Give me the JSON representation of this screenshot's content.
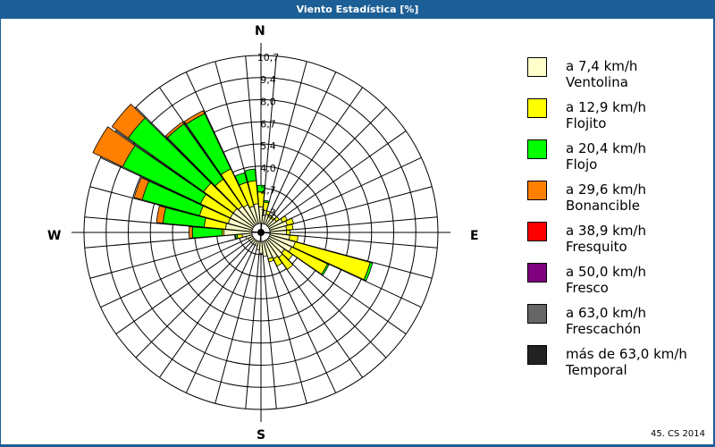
{
  "window": {
    "title": "Viento Estadística [%]"
  },
  "footer": {
    "text": "45. CS 2014"
  },
  "directions": {
    "n": "N",
    "e": "E",
    "s": "S",
    "w": "W"
  },
  "legend": [
    {
      "range": "a 7,4 km/h",
      "name": "Ventolina",
      "color": "#ffffcc"
    },
    {
      "range": "a 12,9 km/h",
      "name": "Flojito",
      "color": "#ffff00"
    },
    {
      "range": "a 20,4 km/h",
      "name": "Flojo",
      "color": "#00ff00"
    },
    {
      "range": "a 29,6 km/h",
      "name": "Bonancible",
      "color": "#ff8000"
    },
    {
      "range": "a 38,9 km/h",
      "name": "Fresquito",
      "color": "#ff0000"
    },
    {
      "range": "a 50,0 km/h",
      "name": "Fresco",
      "color": "#800080"
    },
    {
      "range": "a 63,0 km/h",
      "name": "Frescachón",
      "color": "#666666"
    },
    {
      "range": "más de 63,0 km/h",
      "name": "Temporal",
      "color": "#222222"
    }
  ],
  "chart_data": {
    "type": "wind_rose",
    "title": "Viento Estadística [%]",
    "unit": "%",
    "sector_width_deg": 10,
    "radial_ticks": [
      "1,3",
      "2,7",
      "4,0",
      "5,4",
      "6,7",
      "8,0",
      "9,4",
      "10,7"
    ],
    "radial_max": 10.7,
    "calm_radius_pct": 0.55,
    "series": [
      "Ventolina",
      "Flojito",
      "Flojo",
      "Bonancible",
      "Fresquito",
      "Fresco",
      "Frescachón",
      "Temporal"
    ],
    "sectors": [
      {
        "bearing": 0,
        "values": [
          1.0,
          0.9,
          0.4,
          0,
          0,
          0,
          0,
          0
        ]
      },
      {
        "bearing": 10,
        "values": [
          0.8,
          0.5,
          0.1,
          0,
          0,
          0,
          0,
          0
        ]
      },
      {
        "bearing": 20,
        "values": [
          0.6,
          0.2,
          0,
          0,
          0,
          0,
          0,
          0
        ]
      },
      {
        "bearing": 30,
        "values": [
          0.5,
          0.1,
          0,
          0,
          0,
          0,
          0,
          0
        ]
      },
      {
        "bearing": 40,
        "values": [
          0.5,
          0.1,
          0,
          0,
          0,
          0,
          0,
          0
        ]
      },
      {
        "bearing": 50,
        "values": [
          0.6,
          0.2,
          0,
          0,
          0,
          0,
          0,
          0
        ]
      },
      {
        "bearing": 60,
        "values": [
          0.9,
          0.3,
          0,
          0,
          0,
          0,
          0,
          0
        ]
      },
      {
        "bearing": 70,
        "values": [
          1.1,
          0.4,
          0,
          0,
          0,
          0,
          0,
          0
        ]
      },
      {
        "bearing": 80,
        "values": [
          1.0,
          0.4,
          0,
          0,
          0,
          0,
          0,
          0
        ]
      },
      {
        "bearing": 90,
        "values": [
          1.0,
          0.2,
          0,
          0,
          0,
          0,
          0,
          0
        ]
      },
      {
        "bearing": 100,
        "values": [
          1.2,
          0.5,
          0,
          0,
          0,
          0,
          0,
          0
        ]
      },
      {
        "bearing": 110,
        "values": [
          1.6,
          4.7,
          0.15,
          0,
          0,
          0,
          0,
          0
        ]
      },
      {
        "bearing": 120,
        "values": [
          1.5,
          2.4,
          0.1,
          0,
          0,
          0,
          0,
          0
        ]
      },
      {
        "bearing": 130,
        "values": [
          1.2,
          0.6,
          0,
          0,
          0,
          0,
          0,
          0
        ]
      },
      {
        "bearing": 140,
        "values": [
          1.3,
          0.9,
          0,
          0,
          0,
          0,
          0,
          0
        ]
      },
      {
        "bearing": 150,
        "values": [
          1.2,
          0.5,
          0,
          0,
          0,
          0,
          0,
          0
        ]
      },
      {
        "bearing": 160,
        "values": [
          1.1,
          0.2,
          0,
          0,
          0,
          0,
          0,
          0
        ]
      },
      {
        "bearing": 170,
        "values": [
          0.9,
          0,
          0,
          0,
          0,
          0,
          0,
          0
        ]
      },
      {
        "bearing": 180,
        "values": [
          0.7,
          0,
          0,
          0,
          0,
          0,
          0,
          0
        ]
      },
      {
        "bearing": 190,
        "values": [
          0.5,
          0,
          0,
          0,
          0,
          0,
          0,
          0
        ]
      },
      {
        "bearing": 200,
        "values": [
          0.3,
          0,
          0,
          0,
          0,
          0,
          0,
          0
        ]
      },
      {
        "bearing": 210,
        "values": [
          0.3,
          0,
          0,
          0,
          0,
          0,
          0,
          0
        ]
      },
      {
        "bearing": 220,
        "values": [
          0.3,
          0,
          0,
          0,
          0,
          0,
          0,
          0
        ]
      },
      {
        "bearing": 230,
        "values": [
          0.3,
          0,
          0,
          0,
          0,
          0,
          0,
          0
        ]
      },
      {
        "bearing": 240,
        "values": [
          0.3,
          0,
          0,
          0,
          0,
          0,
          0,
          0
        ]
      },
      {
        "bearing": 250,
        "values": [
          0.4,
          0,
          0,
          0,
          0,
          0,
          0,
          0
        ]
      },
      {
        "bearing": 260,
        "values": [
          0.6,
          0.3,
          0.1,
          0.05,
          0,
          0,
          0,
          0
        ]
      },
      {
        "bearing": 270,
        "values": [
          1.7,
          0.1,
          1.8,
          0.2,
          0,
          0,
          0,
          0
        ]
      },
      {
        "bearing": 280,
        "values": [
          1.6,
          1.3,
          2.5,
          0.4,
          0,
          0,
          0,
          0
        ]
      },
      {
        "bearing": 290,
        "values": [
          1.5,
          1.8,
          3.6,
          0.5,
          0,
          0,
          0,
          0
        ]
      },
      {
        "bearing": 300,
        "values": [
          1.5,
          2.0,
          5.2,
          2.0,
          0,
          0,
          0,
          0
        ]
      },
      {
        "bearing": 310,
        "values": [
          1.5,
          2.2,
          5.6,
          1.2,
          0,
          0,
          0,
          0
        ]
      },
      {
        "bearing": 320,
        "values": [
          1.4,
          2.0,
          4.1,
          0.15,
          0,
          0,
          0,
          0
        ]
      },
      {
        "bearing": 330,
        "values": [
          1.3,
          2.4,
          3.7,
          0.2,
          0,
          0,
          0,
          0
        ]
      },
      {
        "bearing": 340,
        "values": [
          1.1,
          1.5,
          0.6,
          0,
          0,
          0,
          0,
          0
        ]
      },
      {
        "bearing": 350,
        "values": [
          1.2,
          1.4,
          0.7,
          0,
          0,
          0,
          0,
          0
        ]
      }
    ]
  }
}
